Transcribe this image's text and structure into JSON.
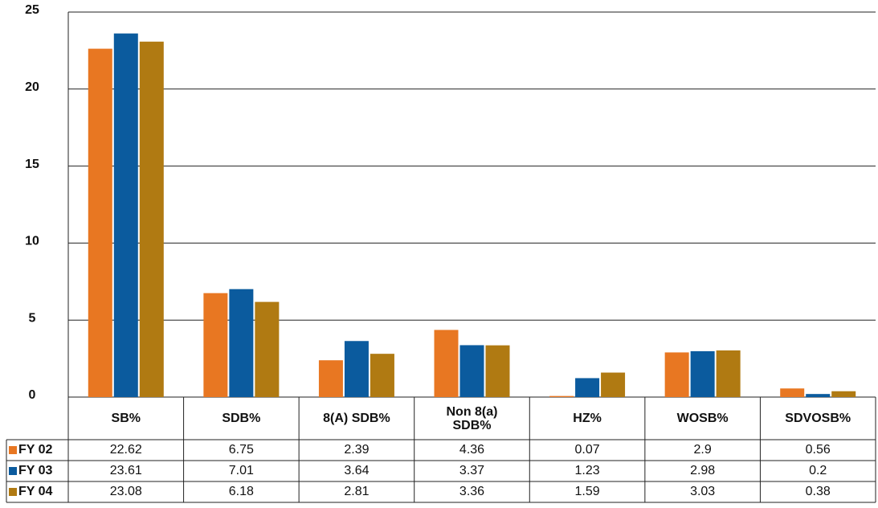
{
  "chart_data": {
    "type": "bar",
    "categories": [
      "SB%",
      "SDB%",
      "8(A) SDB%",
      "Non 8(a)\nSDB%",
      "HZ%",
      "WOSB%",
      "SDVOSB%"
    ],
    "series": [
      {
        "name": "FY 02",
        "color": "#e87722",
        "values": [
          22.62,
          6.75,
          2.39,
          4.36,
          0.07,
          2.9,
          0.56
        ]
      },
      {
        "name": "FY 03",
        "color": "#0b5b9e",
        "values": [
          23.61,
          7.01,
          3.64,
          3.37,
          1.23,
          2.98,
          0.2
        ]
      },
      {
        "name": "FY 04",
        "color": "#b07a12",
        "values": [
          23.08,
          6.18,
          2.81,
          3.36,
          1.59,
          3.03,
          0.38
        ]
      }
    ],
    "ylim": [
      0,
      25
    ],
    "yticks": [
      0,
      5,
      10,
      15,
      20,
      25
    ],
    "grid": true
  }
}
